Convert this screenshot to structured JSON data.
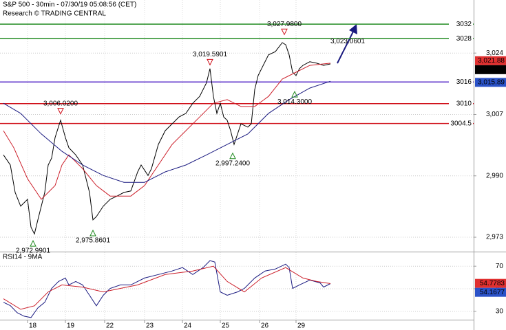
{
  "chart_data": [
    {
      "type": "line",
      "title": "S&P 500 - 30min - 07/30/19 05:08:56 (CET)",
      "subtitle": "Research © TRADING CENTRAL",
      "xlim": [
        0,
        137.6
      ],
      "xticks": [
        {
          "value": 8,
          "label": "18"
        },
        {
          "value": 19,
          "label": "19"
        },
        {
          "value": 30.4,
          "label": "22"
        },
        {
          "value": 42,
          "label": "23"
        },
        {
          "value": 53,
          "label": "24"
        },
        {
          "value": 64,
          "label": "25"
        },
        {
          "value": 75.4,
          "label": "26"
        },
        {
          "value": 86,
          "label": "29"
        }
      ],
      "ylim": [
        2969.2,
        3038.7
      ],
      "yticks": [
        {
          "value": 2973,
          "label": "2,973"
        },
        {
          "value": 2990,
          "label": "2,990"
        },
        {
          "value": 3007,
          "label": "3,007"
        },
        {
          "value": 3024,
          "label": "3,024"
        }
      ],
      "grid": true,
      "series": [
        {
          "color": "#000000",
          "x": [
            1,
            3,
            4.4,
            6,
            8,
            9,
            10,
            11,
            12,
            13,
            14,
            15,
            16,
            17.6,
            19,
            20,
            22,
            24,
            25,
            26,
            27,
            28,
            30,
            32,
            34,
            36,
            38,
            40,
            41,
            43,
            44,
            46,
            48,
            50,
            52,
            54,
            56,
            58,
            60,
            61,
            62,
            63,
            64,
            65,
            66,
            67,
            68,
            70,
            72,
            73,
            74,
            75,
            76,
            78,
            80,
            82,
            83,
            84,
            85,
            86,
            87,
            88,
            90,
            92,
            94,
            96
          ],
          "values": [
            2995.8,
            2993.0,
            2985.4,
            2981.6,
            2983.5,
            2975.8,
            2973.9,
            2977.8,
            2981.6,
            2985.4,
            2993.0,
            2994.9,
            3000.6,
            3005.4,
            3000.6,
            2997.8,
            2995.8,
            2993.0,
            2989.2,
            2985.4,
            2977.8,
            2978.7,
            2981.6,
            2983.5,
            2984.4,
            2985.4,
            2985.8,
            2991.1,
            2993.0,
            2990.1,
            2992.0,
            2998.7,
            3002.5,
            3004.4,
            3006.3,
            3007.3,
            3010.1,
            3012.0,
            3015.8,
            3019.7,
            3012.0,
            3007.3,
            3010.1,
            3006.3,
            3005.4,
            3002.5,
            2998.7,
            3004.4,
            3003.5,
            3004.4,
            3013.9,
            3017.8,
            3019.7,
            3023.5,
            3024.4,
            3026.9,
            3026.3,
            3023.5,
            3018.7,
            3017.8,
            3019.7,
            3020.6,
            3021.6,
            3021.2,
            3020.6,
            3021.0
          ]
        },
        {
          "color": "#cc1f2a",
          "x": [
            1,
            4,
            8,
            12,
            16,
            18,
            20,
            24,
            28,
            32,
            38,
            42,
            46,
            50,
            54,
            58,
            62,
            66,
            70,
            74,
            78,
            82,
            86,
            90,
            96
          ],
          "values": [
            3002.5,
            2997.8,
            2989.2,
            2983.5,
            2987.3,
            2993.0,
            2995.8,
            2992.0,
            2987.3,
            2984.4,
            2984.4,
            2987.3,
            2993.0,
            2998.7,
            3002.5,
            3006.3,
            3010.1,
            3011.1,
            3009.2,
            3009.2,
            3012.0,
            3016.8,
            3018.7,
            3020.6,
            3021.2
          ]
        },
        {
          "color": "#1a1a80",
          "x": [
            1,
            6,
            12,
            18,
            24,
            30,
            36,
            42,
            48,
            54,
            60,
            66,
            72,
            78,
            84,
            90,
            96
          ],
          "values": [
            3010.1,
            3007.3,
            3001.6,
            2996.8,
            2993.0,
            2990.1,
            2988.2,
            2988.2,
            2991.1,
            2993.0,
            2995.8,
            2998.7,
            3001.6,
            3007.3,
            3011.1,
            3014.3,
            3016.2
          ]
        }
      ],
      "levels": [
        {
          "value": 3032,
          "color": "#228b22"
        },
        {
          "value": 3028,
          "color": "#228b22"
        },
        {
          "value": 3016,
          "color": "#5a2fc8"
        },
        {
          "value": 3010,
          "color": "#d0101a"
        },
        {
          "value": 3004.5,
          "color": "#d0101a"
        }
      ],
      "annotations": [
        {
          "kind": "high",
          "x": 82.6,
          "value": 3027.98,
          "label": "3,027.9800"
        },
        {
          "kind": "target",
          "x": 101,
          "value": 3023.0601,
          "label": "3,023.0601"
        },
        {
          "kind": "high",
          "x": 61,
          "value": 3019.5901,
          "label": "3,019.5901"
        },
        {
          "kind": "high",
          "x": 17.6,
          "value": 3006.02,
          "label": "3,006.0200"
        },
        {
          "kind": "low",
          "x": 85.6,
          "value": 3014.3,
          "label": "3,014.3000"
        },
        {
          "kind": "low",
          "x": 67.6,
          "value": 2997.24,
          "label": "2,997.2400"
        },
        {
          "kind": "low",
          "x": 27,
          "value": 2975.8601,
          "label": "2,975.8601"
        },
        {
          "kind": "low",
          "x": 9.6,
          "value": 2972.9901,
          "label": "2,972.9901"
        }
      ],
      "last_tags": [
        {
          "value": 3021.88,
          "label": "3,021.88",
          "color": "#e03030"
        },
        {
          "value": 3020.97,
          "label": "3,020.97",
          "color": "#000000"
        },
        {
          "value": 3015.89,
          "label": "3,015.89",
          "color": "#2a52c8"
        }
      ]
    },
    {
      "type": "line",
      "title": "RSI14 - 9MA",
      "xlim": [
        0,
        137.6
      ],
      "xticks": [
        {
          "value": 8,
          "label": "18"
        },
        {
          "value": 19,
          "label": "19"
        },
        {
          "value": 30.4,
          "label": "22"
        },
        {
          "value": 42,
          "label": "23"
        },
        {
          "value": 53,
          "label": "24"
        },
        {
          "value": 64,
          "label": "25"
        },
        {
          "value": 75.4,
          "label": "26"
        },
        {
          "value": 86,
          "label": "29"
        }
      ],
      "ylim": [
        22.6,
        82.3
      ],
      "yticks": [
        30,
        50,
        70
      ],
      "grid": true,
      "series": [
        {
          "color": "#1a1a80",
          "x": [
            1,
            3,
            5,
            7,
            9,
            11,
            13,
            15,
            17,
            19,
            20,
            22,
            24,
            26,
            28,
            30,
            32,
            35,
            38,
            42,
            46,
            50,
            53,
            56,
            59,
            61,
            62.4,
            64,
            66,
            69,
            71,
            74,
            77,
            80,
            83,
            84,
            85,
            87,
            90,
            93,
            94,
            96
          ],
          "values": [
            38.0,
            35.1,
            28.8,
            25.7,
            24.5,
            33.1,
            38.0,
            50.3,
            56.5,
            59.5,
            53.4,
            56.5,
            53.4,
            44.2,
            34.9,
            44.2,
            50.3,
            53.4,
            53.4,
            59.5,
            62.6,
            65.7,
            68.8,
            62.6,
            68.8,
            74.9,
            73.7,
            47.2,
            44.2,
            47.2,
            50.3,
            59.5,
            65.7,
            67.5,
            71.8,
            68.8,
            50.3,
            53.4,
            57.7,
            55.2,
            51.5,
            54.6
          ]
        },
        {
          "color": "#cc1f2a",
          "x": [
            1,
            6,
            10,
            14,
            18,
            24,
            30,
            40,
            48,
            56,
            62,
            66,
            71,
            76,
            83,
            88,
            92,
            96
          ],
          "values": [
            41.1,
            31.8,
            34.9,
            47.2,
            53.4,
            51.5,
            47.2,
            53.4,
            62.6,
            65.7,
            70.0,
            56.5,
            47.2,
            59.5,
            68.8,
            59.5,
            56.5,
            54.6
          ]
        }
      ],
      "last_tags": [
        {
          "value": 54.7783,
          "label": "54.7783",
          "color": "#e03030"
        },
        {
          "value": 54.1677,
          "label": "54.1677",
          "color": "#2a52c8"
        }
      ]
    }
  ]
}
